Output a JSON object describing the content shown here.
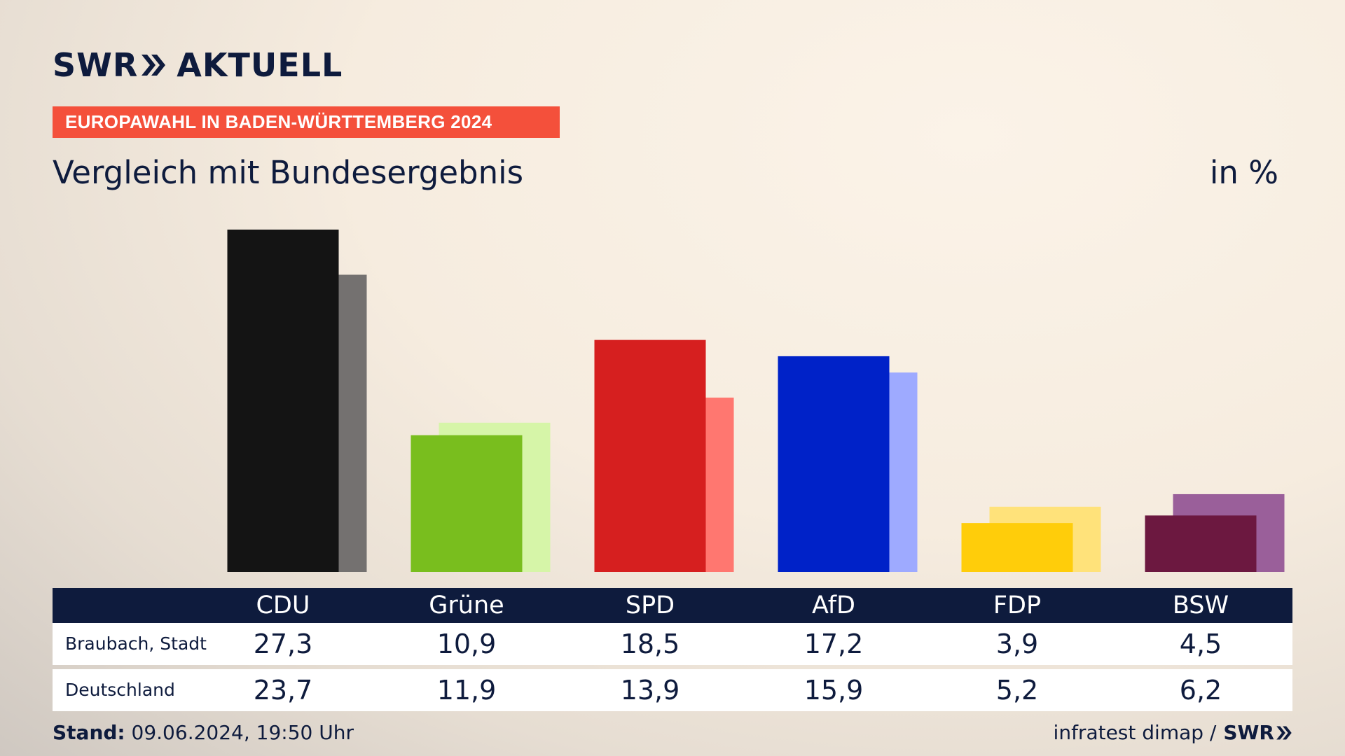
{
  "logo": {
    "brand": "SWR",
    "product": "AKTUELL"
  },
  "kicker": "EUROPAWAHL IN BADEN-WÜRTTEMBERG 2024",
  "footer": {
    "stand_label": "Stand:",
    "stand_value": "09.06.2024, 19:50 Uhr",
    "source": "infratest dimap /",
    "source_brand": "SWR"
  },
  "colors": {
    "navy": "#0e1b3d",
    "kicker_red": "#f4503b"
  },
  "chart_data": {
    "type": "bar",
    "title": "Vergleich mit Bundesergebnis",
    "unit": "in %",
    "categories": [
      "CDU",
      "Grüne",
      "SPD",
      "AfD",
      "FDP",
      "BSW"
    ],
    "row_labels": [
      "Braubach, Stadt",
      "Deutschland"
    ],
    "series": [
      {
        "name": "Braubach, Stadt",
        "values": [
          27.3,
          10.9,
          18.5,
          17.2,
          3.9,
          4.5
        ],
        "labels": [
          "27,3",
          "10,9",
          "18,5",
          "17,2",
          "3,9",
          "4,5"
        ],
        "colors": [
          "#141414",
          "#79be1e",
          "#d61f1f",
          "#0022c8",
          "#ffcd0a",
          "#6c1840"
        ]
      },
      {
        "name": "Deutschland",
        "values": [
          23.7,
          11.9,
          13.9,
          15.9,
          5.2,
          6.2
        ],
        "labels": [
          "23,7",
          "11,9",
          "13,9",
          "15,9",
          "5,2",
          "6,2"
        ],
        "colors": [
          "#747170",
          "#d6f5a8",
          "#ff7770",
          "#9eaaff",
          "#ffe27a",
          "#9a5f9a"
        ]
      }
    ],
    "ylim": [
      0,
      27.3
    ],
    "grid": false,
    "legend": "table-below"
  }
}
